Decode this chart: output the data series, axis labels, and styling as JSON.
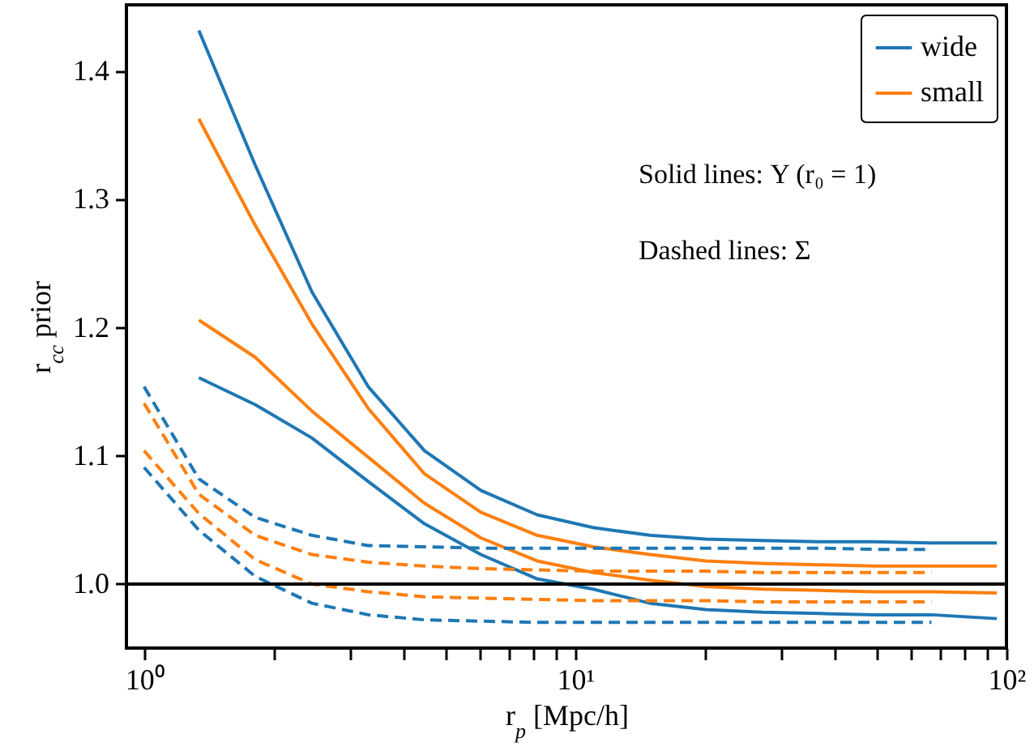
{
  "chart_data": {
    "type": "line",
    "xlabel": "r$_{p}$ [Mpc/h]",
    "ylabel": "r$_{cc}$ prior",
    "log": "x",
    "grid": false,
    "legend": "top right",
    "xlim": [
      0.91,
      100
    ],
    "ylim": [
      0.95,
      1.452
    ],
    "xticks": [
      {
        "value": 1,
        "label": "10⁰"
      },
      {
        "value": 2,
        "label": null
      },
      {
        "value": 3,
        "label": null
      },
      {
        "value": 4,
        "label": null
      },
      {
        "value": 5,
        "label": null
      },
      {
        "value": 6,
        "label": null
      },
      {
        "value": 7,
        "label": null
      },
      {
        "value": 8,
        "label": null
      },
      {
        "value": 9,
        "label": null
      },
      {
        "value": 10,
        "label": "10¹"
      },
      {
        "value": 20,
        "label": null
      },
      {
        "value": 30,
        "label": null
      },
      {
        "value": 40,
        "label": null
      },
      {
        "value": 50,
        "label": null
      },
      {
        "value": 60,
        "label": null
      },
      {
        "value": 70,
        "label": null
      },
      {
        "value": 80,
        "label": null
      },
      {
        "value": 90,
        "label": null
      },
      {
        "value": 100,
        "label": "10²"
      }
    ],
    "yticks": [
      {
        "value": 1.0,
        "label": "1.0"
      },
      {
        "value": 1.1,
        "label": "1.1"
      },
      {
        "value": 1.2,
        "label": "1.2"
      },
      {
        "value": 1.3,
        "label": "1.3"
      },
      {
        "value": 1.4,
        "label": "1.4"
      }
    ],
    "annotations": [
      "Solid lines: Υ (r₀ = 1)",
      "Dashed lines: Σ"
    ],
    "ref_lines": [
      {
        "axis": "y",
        "value": 1.0,
        "color": "#000000"
      }
    ],
    "series": [
      {
        "name": "wide",
        "color": "#1f77b4",
        "line_style": "solid",
        "x": [
          1.34,
          1.81,
          2.45,
          3.31,
          4.47,
          6.04,
          8.16,
          11,
          14.9,
          20.1,
          27.2,
          36.7,
          49.6,
          67,
          95
        ],
        "values": [
          1.432,
          1.327,
          1.228,
          1.154,
          1.104,
          1.073,
          1.054,
          1.044,
          1.038,
          1.035,
          1.034,
          1.033,
          1.033,
          1.032,
          1.032
        ]
      },
      {
        "name": "small",
        "color": "#ff7f0e",
        "line_style": "solid",
        "x": [
          1.34,
          1.81,
          2.45,
          3.31,
          4.47,
          6.04,
          8.16,
          11,
          14.9,
          20.1,
          27.2,
          36.7,
          49.6,
          67,
          95
        ],
        "values": [
          1.363,
          1.28,
          1.203,
          1.137,
          1.086,
          1.056,
          1.038,
          1.029,
          1.023,
          1.018,
          1.016,
          1.015,
          1.014,
          1.014,
          1.014
        ]
      },
      {
        "color": "#ff7f0e",
        "line_style": "solid",
        "x": [
          1.34,
          1.81,
          2.45,
          3.31,
          4.47,
          6.04,
          8.16,
          11,
          14.9,
          20.1,
          27.2,
          36.7,
          49.6,
          67,
          95
        ],
        "values": [
          1.206,
          1.177,
          1.135,
          1.099,
          1.063,
          1.036,
          1.018,
          1.009,
          1.003,
          0.998,
          0.996,
          0.995,
          0.994,
          0.994,
          0.993
        ]
      },
      {
        "color": "#1f77b4",
        "line_style": "solid",
        "x": [
          1.34,
          1.81,
          2.45,
          3.31,
          4.47,
          6.04,
          8.16,
          11,
          14.9,
          20.1,
          27.2,
          36.7,
          49.6,
          67,
          95
        ],
        "values": [
          1.161,
          1.14,
          1.114,
          1.08,
          1.047,
          1.023,
          1.004,
          0.996,
          0.985,
          0.98,
          0.978,
          0.977,
          0.976,
          0.976,
          0.973
        ]
      },
      {
        "color": "#1f77b4",
        "line_style": "dashed",
        "x": [
          1,
          1.34,
          1.81,
          2.45,
          3.31,
          4.47,
          6.04,
          8.16,
          11,
          14.9,
          20.1,
          27.2,
          36.7,
          49.6,
          67
        ],
        "values": [
          1.154,
          1.082,
          1.052,
          1.038,
          1.03,
          1.029,
          1.028,
          1.028,
          1.028,
          1.028,
          1.028,
          1.028,
          1.028,
          1.027,
          1.027
        ]
      },
      {
        "color": "#ff7f0e",
        "line_style": "dashed",
        "x": [
          1,
          1.34,
          1.81,
          2.45,
          3.31,
          4.47,
          6.04,
          8.16,
          11,
          14.9,
          20.1,
          27.2,
          36.7,
          49.6,
          67
        ],
        "values": [
          1.141,
          1.07,
          1.038,
          1.023,
          1.017,
          1.014,
          1.012,
          1.011,
          1.01,
          1.01,
          1.01,
          1.009,
          1.009,
          1.009,
          1.009
        ]
      },
      {
        "color": "#ff7f0e",
        "line_style": "dashed",
        "x": [
          1,
          1.34,
          1.81,
          2.45,
          3.31,
          4.47,
          6.04,
          8.16,
          11,
          14.9,
          20.1,
          27.2,
          36.7,
          49.6,
          67
        ],
        "values": [
          1.104,
          1.055,
          1.019,
          1.0,
          0.994,
          0.99,
          0.989,
          0.988,
          0.987,
          0.987,
          0.987,
          0.986,
          0.986,
          0.986,
          0.986
        ]
      },
      {
        "color": "#1f77b4",
        "line_style": "dashed",
        "x": [
          1,
          1.34,
          1.81,
          2.45,
          3.31,
          4.47,
          6.04,
          8.16,
          11,
          14.9,
          20.1,
          27.2,
          36.7,
          49.6,
          67
        ],
        "values": [
          1.091,
          1.042,
          1.006,
          0.985,
          0.976,
          0.972,
          0.971,
          0.97,
          0.97,
          0.97,
          0.97,
          0.97,
          0.97,
          0.97,
          0.97
        ]
      }
    ]
  }
}
